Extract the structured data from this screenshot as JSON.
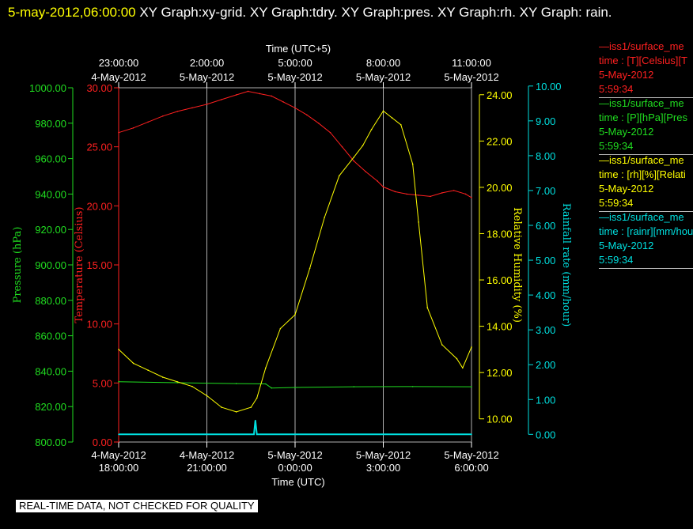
{
  "header": {
    "timestamp": "5-may-2012,06:00:00",
    "graphs": "XY Graph:xy-grid.  XY Graph:tdry.  XY Graph:pres.  XY Graph:rh.  XY Graph: rain."
  },
  "quality_note": "REAL-TIME DATA, NOT CHECKED FOR QUALITY",
  "colors": {
    "temperature": "#ff2020",
    "pressure": "#20dd20",
    "rh": "#ffff00",
    "rain": "#00e0e0",
    "grid": "#b0b0b0"
  },
  "legend": [
    {
      "line": "—iss1/surface_me",
      "text": "time : [T][Celsius][T",
      "date": "5-May-2012",
      "time": "5:59:34",
      "color": "#ff2020"
    },
    {
      "line": "—iss1/surface_me",
      "text": "time : [P][hPa][Pres",
      "date": "5-May-2012",
      "time": "5:59:34",
      "color": "#20dd20"
    },
    {
      "line": "—iss1/surface_me",
      "text": "time : [rh][%][Relati",
      "date": "5-May-2012",
      "time": "5:59:34",
      "color": "#ffff00"
    },
    {
      "line": "—iss1/surface_me",
      "text": "time : [rainr][mm/hou",
      "date": "5-May-2012",
      "time": "5:59:34",
      "color": "#00e0e0"
    }
  ],
  "chart_data": {
    "type": "line",
    "xlabel": "Time (UTC)",
    "x2label": "Time (UTC+5)",
    "x_range_hours": [
      0,
      12
    ],
    "x_ticks": [
      {
        "h": 0,
        "bottom": [
          "4-May-2012",
          "18:00:00"
        ],
        "top": [
          "23:00:00",
          "4-May-2012"
        ]
      },
      {
        "h": 3,
        "bottom": [
          "4-May-2012",
          "21:00:00"
        ],
        "top": [
          "2:00:00",
          "5-May-2012"
        ]
      },
      {
        "h": 6,
        "bottom": [
          "5-May-2012",
          "0:00:00"
        ],
        "top": [
          "5:00:00",
          "5-May-2012"
        ]
      },
      {
        "h": 9,
        "bottom": [
          "5-May-2012",
          "3:00:00"
        ],
        "top": [
          "8:00:00",
          "5-May-2012"
        ]
      },
      {
        "h": 12,
        "bottom": [
          "5-May-2012",
          "6:00:00"
        ],
        "top": [
          "11:00:00",
          "5-May-2012"
        ]
      }
    ],
    "axes": {
      "pressure": {
        "label": "Pressure (hPa)",
        "range": [
          800,
          1000
        ],
        "ticks": [
          "800.00",
          "820.00",
          "840.00",
          "860.00",
          "880.00",
          "900.00",
          "920.00",
          "940.00",
          "960.00",
          "980.00",
          "1000.00"
        ]
      },
      "temperature": {
        "label": "Temperature (Celsius)",
        "range": [
          0,
          30
        ],
        "ticks": [
          "0.00",
          "5.00",
          "10.00",
          "15.00",
          "20.00",
          "25.00",
          "30.00"
        ]
      },
      "rh": {
        "label": "Relative Humidity (%)",
        "range": [
          9,
          24.3
        ],
        "ticks": [
          "10.00",
          "12.00",
          "14.00",
          "16.00",
          "18.00",
          "20.00",
          "22.00",
          "24.00"
        ]
      },
      "rain": {
        "label": "Rainfall rate (mm/hour)",
        "range": [
          -0.22,
          9.95
        ],
        "ticks": [
          "0.00",
          "1.00",
          "2.00",
          "3.00",
          "4.00",
          "5.00",
          "6.00",
          "7.00",
          "8.00",
          "9.00",
          "10.00"
        ]
      }
    },
    "series": [
      {
        "key": "temperature",
        "x": [
          0,
          0.5,
          1,
          1.5,
          2,
          2.5,
          3,
          3.5,
          4,
          4.4,
          4.8,
          5.2,
          5.6,
          6,
          6.4,
          6.8,
          7.2,
          7.6,
          8,
          8.4,
          8.8,
          9,
          9.4,
          9.8,
          10.2,
          10.6,
          11,
          11.4,
          11.8,
          12
        ],
        "y": [
          26.2,
          26.6,
          27.1,
          27.6,
          28.0,
          28.3,
          28.6,
          29.0,
          29.4,
          29.7,
          29.5,
          29.3,
          28.8,
          28.3,
          27.7,
          27.0,
          26.2,
          25.0,
          23.8,
          22.9,
          22.1,
          21.6,
          21.2,
          21.0,
          20.9,
          20.8,
          21.1,
          21.3,
          21.0,
          20.7
        ]
      },
      {
        "key": "pressure",
        "x": [
          0,
          2,
          4,
          5,
          5.2,
          6,
          8,
          10,
          12
        ],
        "y": [
          834,
          833.5,
          833,
          832.8,
          830.5,
          830.8,
          831.2,
          831.3,
          831.2
        ]
      },
      {
        "key": "rh",
        "x": [
          0,
          0.5,
          1,
          1.5,
          2,
          2.5,
          3,
          3.5,
          4,
          4.5,
          4.7,
          5,
          5.5,
          6,
          6.5,
          7,
          7.5,
          8,
          8.3,
          8.6,
          9,
          9.3,
          9.6,
          10,
          10.2,
          10.5,
          11,
          11.5,
          11.7,
          12
        ],
        "y": [
          13.0,
          12.4,
          12.1,
          11.8,
          11.6,
          11.4,
          11.0,
          10.5,
          10.3,
          10.5,
          10.9,
          12.2,
          13.9,
          14.5,
          16.5,
          18.7,
          20.5,
          21.3,
          21.8,
          22.5,
          23.3,
          23.0,
          22.7,
          21.0,
          18.5,
          14.8,
          13.2,
          12.6,
          12.2,
          13.1
        ]
      },
      {
        "key": "rain",
        "x": [
          0,
          4.6,
          4.65,
          4.7,
          12
        ],
        "y": [
          0,
          0,
          0.4,
          0,
          0
        ]
      }
    ]
  }
}
